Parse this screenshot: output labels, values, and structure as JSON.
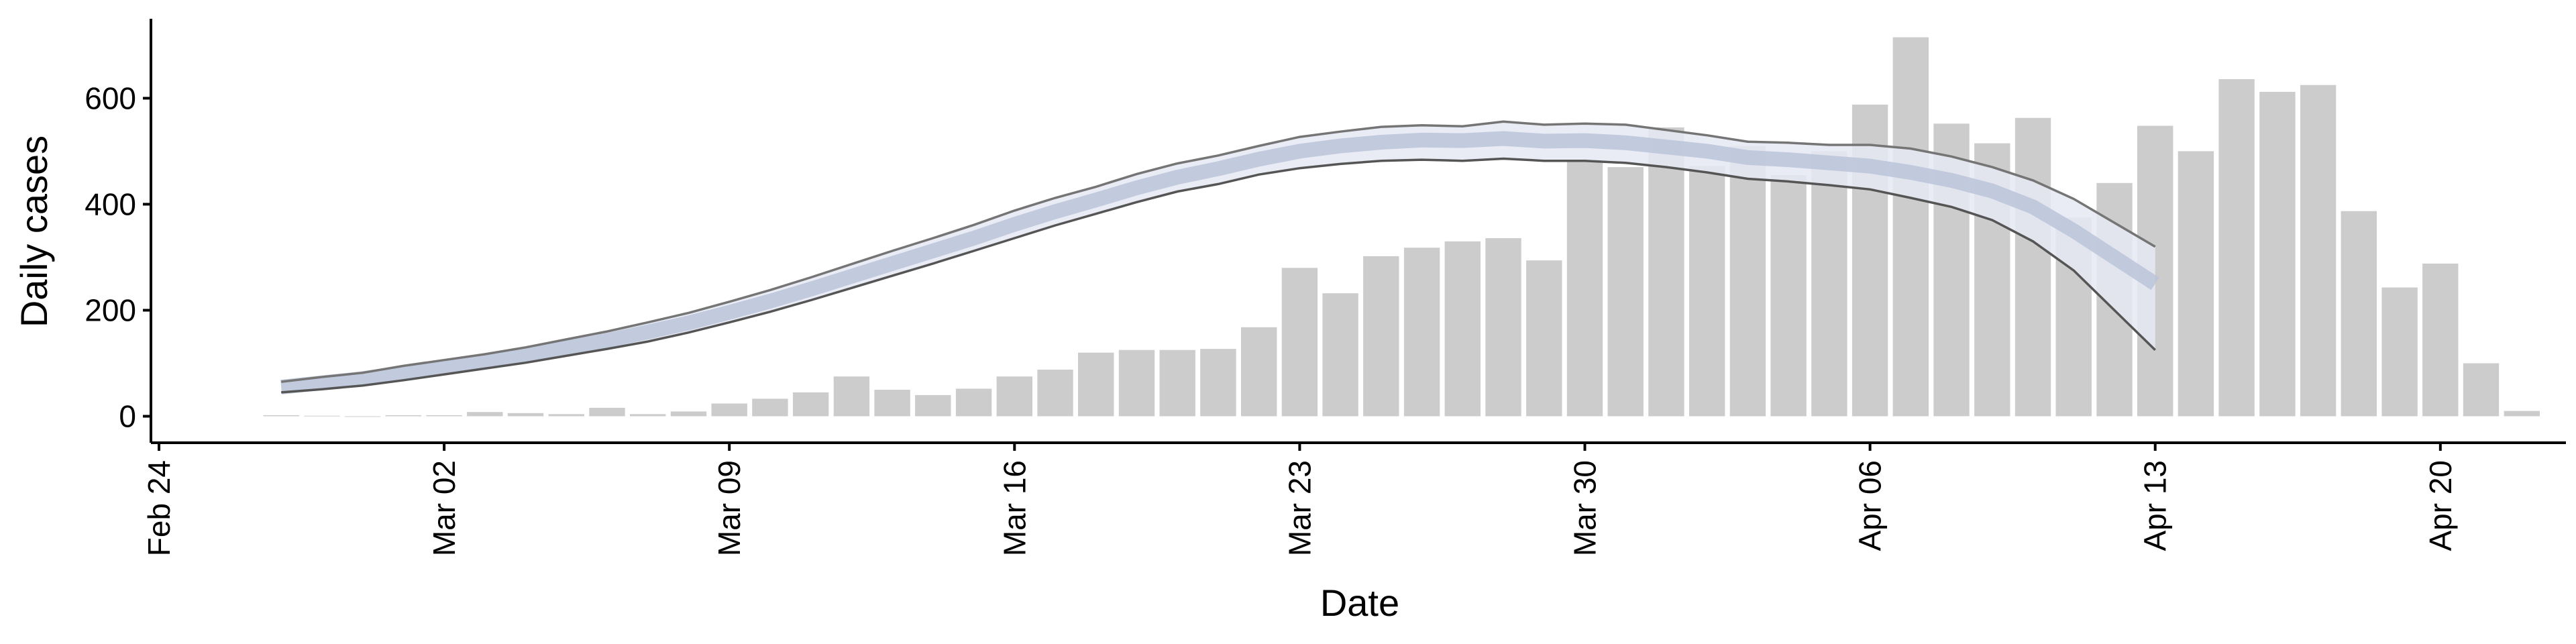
{
  "chart_data": {
    "type": "bar",
    "xlabel": "Date",
    "ylabel": "Daily cases",
    "ylim": [
      -50,
      760
    ],
    "yticks": [
      0,
      200,
      400,
      600
    ],
    "xlim": [
      "2020-02-24",
      "2020-04-23"
    ],
    "xticks": [
      {
        "date": "2020-02-24",
        "label": "Feb 24"
      },
      {
        "date": "2020-03-02",
        "label": "Mar 02"
      },
      {
        "date": "2020-03-09",
        "label": "Mar 09"
      },
      {
        "date": "2020-03-16",
        "label": "Mar 16"
      },
      {
        "date": "2020-03-23",
        "label": "Mar 23"
      },
      {
        "date": "2020-03-30",
        "label": "Mar 30"
      },
      {
        "date": "2020-04-06",
        "label": "Apr 06"
      },
      {
        "date": "2020-04-13",
        "label": "Apr 13"
      },
      {
        "date": "2020-04-20",
        "label": "Apr 20"
      }
    ],
    "grid": false,
    "bar_color": "#cccccc",
    "bars": {
      "dates": [
        "2020-02-27",
        "2020-02-28",
        "2020-02-29",
        "2020-03-01",
        "2020-03-02",
        "2020-03-03",
        "2020-03-04",
        "2020-03-05",
        "2020-03-06",
        "2020-03-07",
        "2020-03-08",
        "2020-03-09",
        "2020-03-10",
        "2020-03-11",
        "2020-03-12",
        "2020-03-13",
        "2020-03-14",
        "2020-03-15",
        "2020-03-16",
        "2020-03-17",
        "2020-03-18",
        "2020-03-19",
        "2020-03-20",
        "2020-03-21",
        "2020-03-22",
        "2020-03-23",
        "2020-03-24",
        "2020-03-25",
        "2020-03-26",
        "2020-03-27",
        "2020-03-28",
        "2020-03-29",
        "2020-03-30",
        "2020-03-31",
        "2020-04-01",
        "2020-04-02",
        "2020-04-03",
        "2020-04-04",
        "2020-04-05",
        "2020-04-06",
        "2020-04-07",
        "2020-04-08",
        "2020-04-09",
        "2020-04-10",
        "2020-04-11",
        "2020-04-12",
        "2020-04-13",
        "2020-04-14",
        "2020-04-15",
        "2020-04-16",
        "2020-04-17",
        "2020-04-18",
        "2020-04-19",
        "2020-04-20",
        "2020-04-21",
        "2020-04-22"
      ],
      "values": [
        2,
        1,
        0,
        2,
        2,
        8,
        6,
        4,
        16,
        4,
        9,
        24,
        33,
        45,
        75,
        50,
        40,
        52,
        75,
        88,
        120,
        125,
        125,
        127,
        168,
        280,
        232,
        302,
        318,
        330,
        336,
        294,
        480,
        470,
        545,
        472,
        510,
        455,
        500,
        588,
        715,
        552,
        515,
        563,
        375,
        440,
        548,
        500,
        636,
        612,
        625,
        387,
        243,
        288,
        100,
        10
      ]
    },
    "series": [
      {
        "name": "",
        "kind": "ribbon",
        "color": "#b8c2d8",
        "dates": [
          "2020-02-27",
          "2020-02-28",
          "2020-02-29",
          "2020-03-01",
          "2020-03-02",
          "2020-03-03",
          "2020-03-04",
          "2020-03-05",
          "2020-03-06",
          "2020-03-07",
          "2020-03-08",
          "2020-03-09",
          "2020-03-10",
          "2020-03-11",
          "2020-03-12",
          "2020-03-13",
          "2020-03-14",
          "2020-03-15",
          "2020-03-16",
          "2020-03-17",
          "2020-03-18",
          "2020-03-19",
          "2020-03-20",
          "2020-03-21",
          "2020-03-22",
          "2020-03-23",
          "2020-03-24",
          "2020-03-25",
          "2020-03-26",
          "2020-03-27",
          "2020-03-28",
          "2020-03-29",
          "2020-03-30",
          "2020-03-31",
          "2020-04-01",
          "2020-04-02",
          "2020-04-03",
          "2020-04-04",
          "2020-04-05",
          "2020-04-06",
          "2020-04-07",
          "2020-04-08",
          "2020-04-09",
          "2020-04-10",
          "2020-04-11",
          "2020-04-12",
          "2020-04-13"
        ],
        "upper": [
          65,
          74,
          82,
          95,
          106,
          117,
          130,
          145,
          160,
          177,
          195,
          216,
          238,
          262,
          287,
          312,
          336,
          361,
          388,
          412,
          433,
          457,
          477,
          492,
          510,
          527,
          537,
          546,
          549,
          547,
          556,
          550,
          552,
          550,
          540,
          530,
          518,
          516,
          512,
          512,
          505,
          490,
          470,
          445,
          410,
          365,
          320
        ],
        "mid": [
          55,
          63,
          71,
          82,
          93,
          104,
          116,
          129,
          143,
          159,
          176,
          196,
          217,
          240,
          264,
          288,
          312,
          336,
          362,
          386,
          408,
          431,
          451,
          467,
          485,
          500,
          510,
          517,
          521,
          520,
          524,
          519,
          520,
          516,
          508,
          500,
          488,
          484,
          478,
          472,
          460,
          445,
          425,
          395,
          350,
          300,
          250
        ],
        "lower": [
          45,
          51,
          58,
          68,
          79,
          90,
          101,
          114,
          127,
          141,
          158,
          177,
          197,
          219,
          242,
          265,
          288,
          312,
          336,
          360,
          382,
          404,
          424,
          438,
          456,
          468,
          476,
          482,
          484,
          482,
          486,
          482,
          482,
          478,
          470,
          460,
          448,
          443,
          436,
          428,
          412,
          395,
          370,
          330,
          275,
          200,
          125
        ]
      }
    ]
  }
}
